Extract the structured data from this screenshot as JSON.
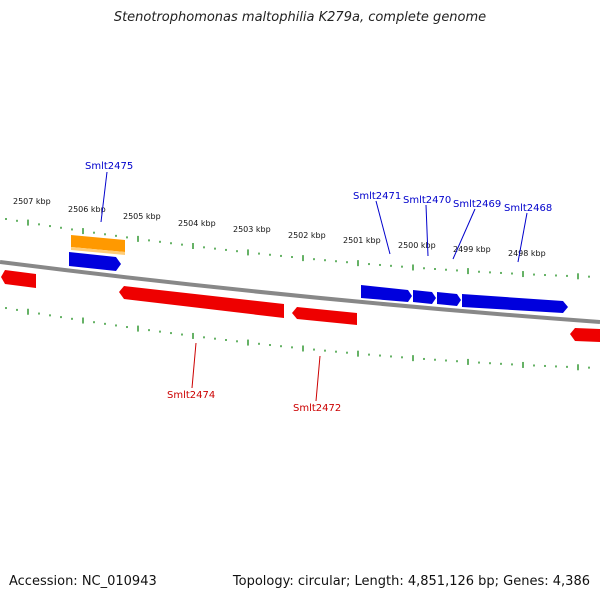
{
  "title": "Stenotrophomonas maltophilia K279a, complete genome",
  "accession": "Accession: NC_010943",
  "summary": "Topology: circular; Length: 4,851,126 bp; Genes: 4,386",
  "scale_labels": [
    "2507 kbp",
    "2506 kbp",
    "2505 kbp",
    "2504 kbp",
    "2503 kbp",
    "2502 kbp",
    "2501 kbp",
    "2500 kbp",
    "2499 kbp",
    "2498 kbp"
  ],
  "colors": {
    "forward": "#0000dd",
    "reverse": "#ee0000",
    "highlight": "#ff9900",
    "backbone": "#888888",
    "tick": "#339933"
  },
  "gene_labels": {
    "smlt2475": "Smlt2475",
    "smlt2471": "Smlt2471",
    "smlt2470": "Smlt2470",
    "smlt2469": "Smlt2469",
    "smlt2468": "Smlt2468",
    "smlt2474": "Smlt2474",
    "smlt2472": "Smlt2472"
  }
}
